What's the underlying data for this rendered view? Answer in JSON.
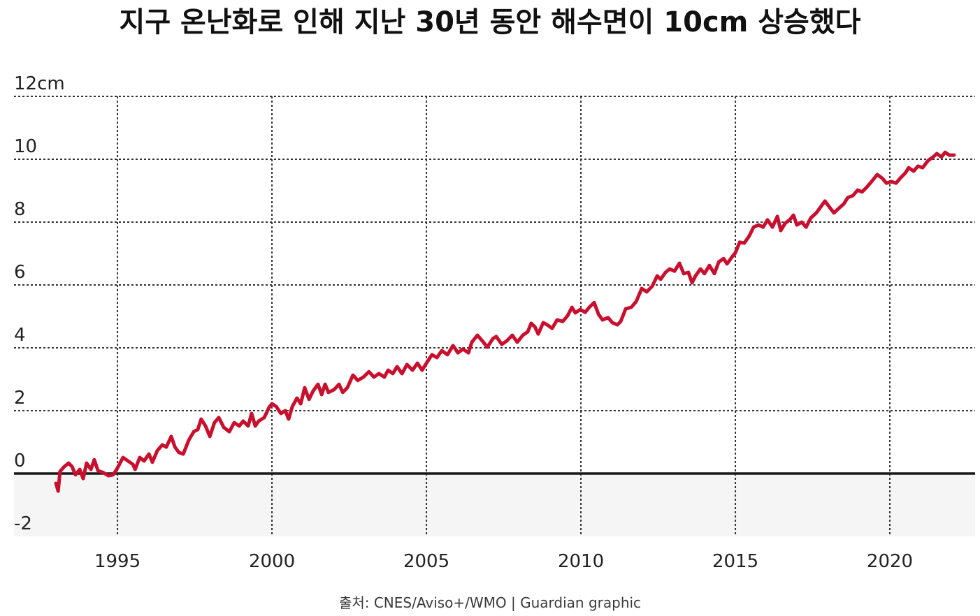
{
  "chart_data": {
    "type": "line",
    "title": "지구 온난화로 인해 지난 30년 동안 해수면이 10cm 상승했다",
    "xlabel": "",
    "ylabel": "",
    "xlim": [
      1991.65,
      2022.76
    ],
    "ylim": [
      -2,
      12
    ],
    "grid": true,
    "legend": "none",
    "x_ticks": [
      1995,
      2000,
      2005,
      2010,
      2015,
      2020
    ],
    "x_tick_labels": [
      "1995",
      "2000",
      "2005",
      "2010",
      "2015",
      "2020"
    ],
    "y_ticks": [
      -2,
      0,
      2,
      4,
      6,
      8,
      10,
      12
    ],
    "y_tick_labels": [
      "-2",
      "0",
      "2",
      "4",
      "6",
      "8",
      "10",
      "12cm"
    ],
    "zero_line": true,
    "shaded_region": [
      -2,
      0
    ],
    "colors": {
      "zero_line": "#1a1a1a",
      "grid": "#333333",
      "shaded_region": "#f5f5f5",
      "text": "#222222"
    },
    "series": [
      {
        "color": "#c8102e",
        "x": [
          1993.01,
          1993.08,
          1993.14,
          1993.28,
          1993.42,
          1993.53,
          1993.64,
          1993.78,
          1993.89,
          1994.0,
          1994.14,
          1994.25,
          1994.37,
          1994.52,
          1994.71,
          1994.86,
          1995.0,
          1995.18,
          1995.34,
          1995.5,
          1995.57,
          1995.72,
          1995.86,
          1996.02,
          1996.13,
          1996.29,
          1996.45,
          1996.58,
          1996.74,
          1996.86,
          1996.99,
          1997.13,
          1997.31,
          1997.47,
          1997.6,
          1997.71,
          1997.85,
          1997.99,
          1998.14,
          1998.28,
          1998.44,
          1998.62,
          1998.78,
          1998.94,
          1999.07,
          1999.23,
          1999.34,
          1999.46,
          1999.57,
          1999.75,
          1999.91,
          2000.0,
          2000.14,
          2000.29,
          2000.43,
          2000.54,
          2000.66,
          2000.81,
          2000.93,
          2001.06,
          2001.2,
          2001.33,
          2001.49,
          2001.61,
          2001.72,
          2001.83,
          2002.01,
          2002.17,
          2002.29,
          2002.44,
          2002.62,
          2002.78,
          2002.96,
          2003.14,
          2003.3,
          2003.46,
          2003.64,
          2003.76,
          2003.91,
          2004.05,
          2004.21,
          2004.37,
          2004.55,
          2004.71,
          2004.86,
          2005.0,
          2005.18,
          2005.34,
          2005.5,
          2005.68,
          2005.86,
          2006.02,
          2006.18,
          2006.36,
          2006.47,
          2006.65,
          2006.81,
          2006.97,
          2007.15,
          2007.26,
          2007.44,
          2007.6,
          2007.78,
          2007.94,
          2008.12,
          2008.28,
          2008.39,
          2008.51,
          2008.62,
          2008.78,
          2008.91,
          2009.07,
          2009.23,
          2009.41,
          2009.57,
          2009.71,
          2009.82,
          2009.98,
          2010.14,
          2010.27,
          2010.43,
          2010.57,
          2010.7,
          2010.88,
          2011.02,
          2011.18,
          2011.29,
          2011.45,
          2011.63,
          2011.79,
          2011.97,
          2012.13,
          2012.31,
          2012.47,
          2012.58,
          2012.74,
          2012.87,
          2013.03,
          2013.19,
          2013.33,
          2013.48,
          2013.6,
          2013.71,
          2013.87,
          2014.0,
          2014.16,
          2014.32,
          2014.46,
          2014.62,
          2014.73,
          2014.89,
          2015.0,
          2015.14,
          2015.29,
          2015.45,
          2015.59,
          2015.75,
          2015.9,
          2016.04,
          2016.2,
          2016.36,
          2016.47,
          2016.61,
          2016.76,
          2016.88,
          2016.99,
          2017.15,
          2017.29,
          2017.44,
          2017.62,
          2017.78,
          2017.9,
          2018.05,
          2018.19,
          2018.35,
          2018.51,
          2018.64,
          2018.8,
          2018.96,
          2019.1,
          2019.25,
          2019.41,
          2019.59,
          2019.75,
          2019.89,
          2020.05,
          2020.2,
          2020.34,
          2020.5,
          2020.61,
          2020.77,
          2020.91,
          2021.06,
          2021.24,
          2021.4,
          2021.52,
          2021.67,
          2021.79,
          2021.92,
          2022.08
        ],
        "y": [
          -0.31,
          -0.56,
          0.07,
          0.22,
          0.33,
          0.22,
          -0.04,
          0.13,
          -0.16,
          0.33,
          0.13,
          0.44,
          0.09,
          0.04,
          -0.07,
          -0.04,
          0.18,
          0.51,
          0.4,
          0.29,
          0.13,
          0.51,
          0.4,
          0.62,
          0.36,
          0.73,
          0.91,
          0.84,
          1.18,
          0.84,
          0.67,
          0.62,
          1.07,
          1.33,
          1.4,
          1.73,
          1.51,
          1.18,
          1.62,
          1.78,
          1.47,
          1.33,
          1.62,
          1.51,
          1.67,
          1.51,
          1.91,
          1.51,
          1.67,
          1.78,
          2.11,
          2.22,
          2.13,
          1.91,
          2.0,
          1.73,
          2.13,
          2.4,
          2.22,
          2.73,
          2.36,
          2.62,
          2.84,
          2.51,
          2.84,
          2.58,
          2.67,
          2.84,
          2.58,
          2.73,
          3.13,
          2.96,
          3.07,
          3.24,
          3.07,
          3.18,
          3.07,
          3.29,
          3.18,
          3.4,
          3.18,
          3.47,
          3.29,
          3.51,
          3.29,
          3.51,
          3.78,
          3.69,
          3.91,
          3.78,
          4.07,
          3.84,
          3.96,
          3.84,
          4.18,
          4.4,
          4.22,
          4.02,
          4.29,
          4.36,
          4.11,
          4.22,
          4.4,
          4.18,
          4.4,
          4.51,
          4.78,
          4.67,
          4.44,
          4.8,
          4.73,
          4.62,
          4.89,
          4.84,
          5.02,
          5.29,
          5.11,
          5.22,
          5.13,
          5.29,
          5.44,
          5.07,
          4.89,
          4.96,
          4.8,
          4.73,
          4.84,
          5.24,
          5.29,
          5.47,
          5.89,
          5.78,
          5.96,
          6.29,
          6.18,
          6.4,
          6.51,
          6.44,
          6.69,
          6.36,
          6.4,
          6.07,
          6.29,
          6.51,
          6.36,
          6.62,
          6.36,
          6.73,
          6.84,
          6.67,
          6.89,
          7.02,
          7.36,
          7.33,
          7.56,
          7.84,
          7.91,
          7.84,
          8.07,
          7.84,
          8.18,
          7.73,
          7.96,
          8.07,
          8.22,
          7.91,
          8.0,
          7.84,
          8.13,
          8.29,
          8.51,
          8.67,
          8.47,
          8.29,
          8.44,
          8.58,
          8.78,
          8.84,
          9.02,
          8.96,
          9.11,
          9.29,
          9.51,
          9.4,
          9.24,
          9.29,
          9.24,
          9.4,
          9.56,
          9.73,
          9.62,
          9.78,
          9.73,
          9.96,
          10.07,
          10.18,
          10.07,
          10.22,
          10.13,
          10.13
        ]
      }
    ]
  },
  "source": "출처: CNES/Aviso+/WMO | Guardian graphic"
}
